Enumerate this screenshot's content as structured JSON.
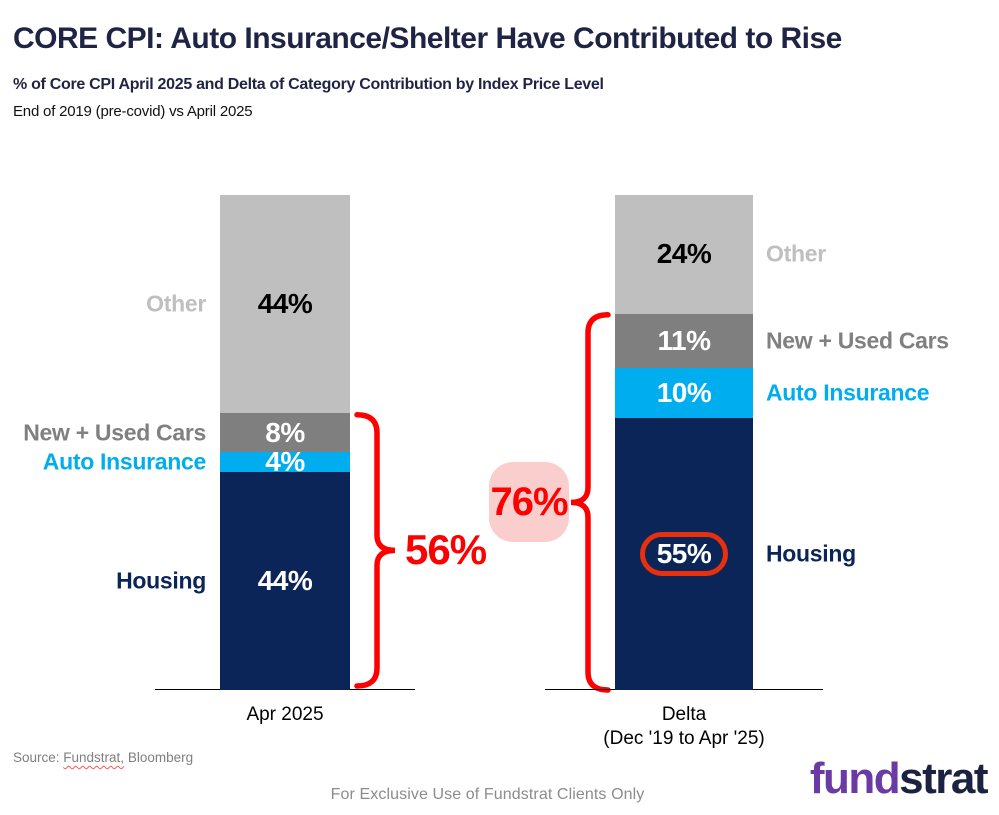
{
  "header": {
    "title": "CORE CPI: Auto Insurance/Shelter Have Contributed to Rise",
    "subtitle": "% of Core CPI April 2025 and Delta of Category Contribution by Index Price Level",
    "note": "End of 2019 (pre-covid) vs April 2025"
  },
  "chart_data": {
    "type": "bar",
    "stacked": true,
    "categories": [
      "Apr 2025",
      "Delta (Dec '19 to Apr '25)"
    ],
    "categories_display": [
      "Apr 2025",
      "Delta\n(Dec '19 to Apr '25)"
    ],
    "segment_order_top_to_bottom": [
      "Other",
      "New + Used Cars",
      "Auto Insurance",
      "Housing"
    ],
    "series": [
      {
        "name": "Other",
        "values": [
          44,
          24
        ],
        "color": "#BFBFBF",
        "value_text_color": "#000000",
        "label_color": "#BFBFBF"
      },
      {
        "name": "New + Used Cars",
        "values": [
          8,
          11
        ],
        "color": "#7F7F7F",
        "value_text_color": "#FFFFFF",
        "label_color": "#808080"
      },
      {
        "name": "Auto Insurance",
        "values": [
          4,
          10
        ],
        "color": "#00AEEF",
        "value_text_color": "#FFFFFF",
        "label_color": "#00AEEF"
      },
      {
        "name": "Housing",
        "values": [
          44,
          55
        ],
        "color": "#0B2559",
        "value_text_color": "#FFFFFF",
        "label_color": "#0B2559"
      }
    ],
    "value_suffix": "%",
    "ylim": [
      0,
      100
    ],
    "grid": false,
    "legend_position": "beside-bars",
    "annotations": {
      "left_brace_total": "56%",
      "left_brace_covers": [
        "New + Used Cars",
        "Auto Insurance",
        "Housing"
      ],
      "right_brace_total": "76%",
      "right_brace_covers": [
        "New + Used Cars",
        "Auto Insurance",
        "Housing"
      ],
      "circled": {
        "bar_index": 1,
        "series": "Housing",
        "value": "55%"
      },
      "accent_red": "#FF0000",
      "circle_red": "#E8300C",
      "badge_bg": "#FBCECE"
    }
  },
  "footer": {
    "source_prefix": "Source: ",
    "source_fundstrat": "Fundstrat,",
    "source_rest": " Bloomberg",
    "disclaimer": "For Exclusive Use of Fundstrat Clients Only",
    "logo": {
      "part1": "fund",
      "part2": "strat",
      "part1_color": "#6A3AA5",
      "part2_color": "#1C2340"
    }
  }
}
